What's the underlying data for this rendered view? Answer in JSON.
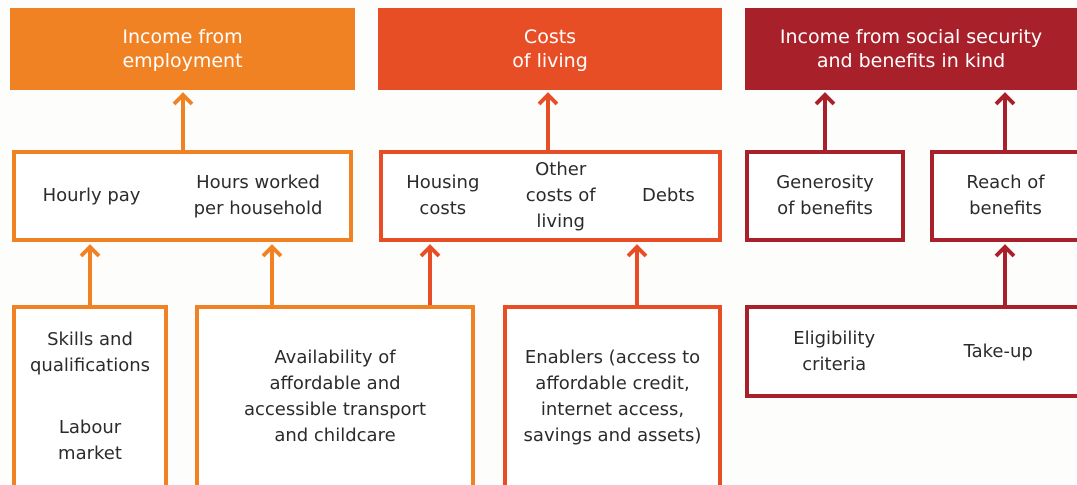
{
  "header_boxes": [
    {
      "lines": [
        "Income from",
        "employment"
      ]
    },
    {
      "lines": [
        "Costs",
        "of living"
      ]
    },
    {
      "lines": [
        "Income from social security",
        "and benefits in kind"
      ]
    }
  ],
  "middle_boxes": [
    {
      "items": [
        {
          "lines": [
            "Hourly pay"
          ]
        },
        {
          "lines": [
            "Hours worked",
            "per household"
          ]
        }
      ]
    },
    {
      "items": [
        {
          "lines": [
            "Housing",
            "costs"
          ]
        },
        {
          "lines": [
            "Other",
            "costs of",
            "living"
          ]
        },
        {
          "lines": [
            "Debts"
          ]
        }
      ]
    },
    {
      "items": [
        {
          "lines": [
            "Generosity",
            "of benefits"
          ]
        }
      ]
    },
    {
      "items": [
        {
          "lines": [
            "Reach of",
            "benefits"
          ]
        }
      ]
    }
  ],
  "bottom_boxes": [
    {
      "items": [
        {
          "lines": [
            "Skills and",
            "qualifications"
          ]
        },
        {
          "lines": [
            "Labour",
            "market"
          ]
        }
      ]
    },
    {
      "items": [
        {
          "lines": [
            "Availability of",
            "affordable and",
            "accessible transport",
            "and childcare"
          ]
        }
      ]
    },
    {
      "items": [
        {
          "lines": [
            "Enablers (access to",
            "affordable credit,",
            "internet access,",
            "savings and assets)"
          ]
        }
      ]
    },
    {
      "items": [
        {
          "lines": [
            "Eligibility",
            "criteria"
          ]
        },
        {
          "lines": [
            "Take-up"
          ]
        }
      ]
    }
  ]
}
